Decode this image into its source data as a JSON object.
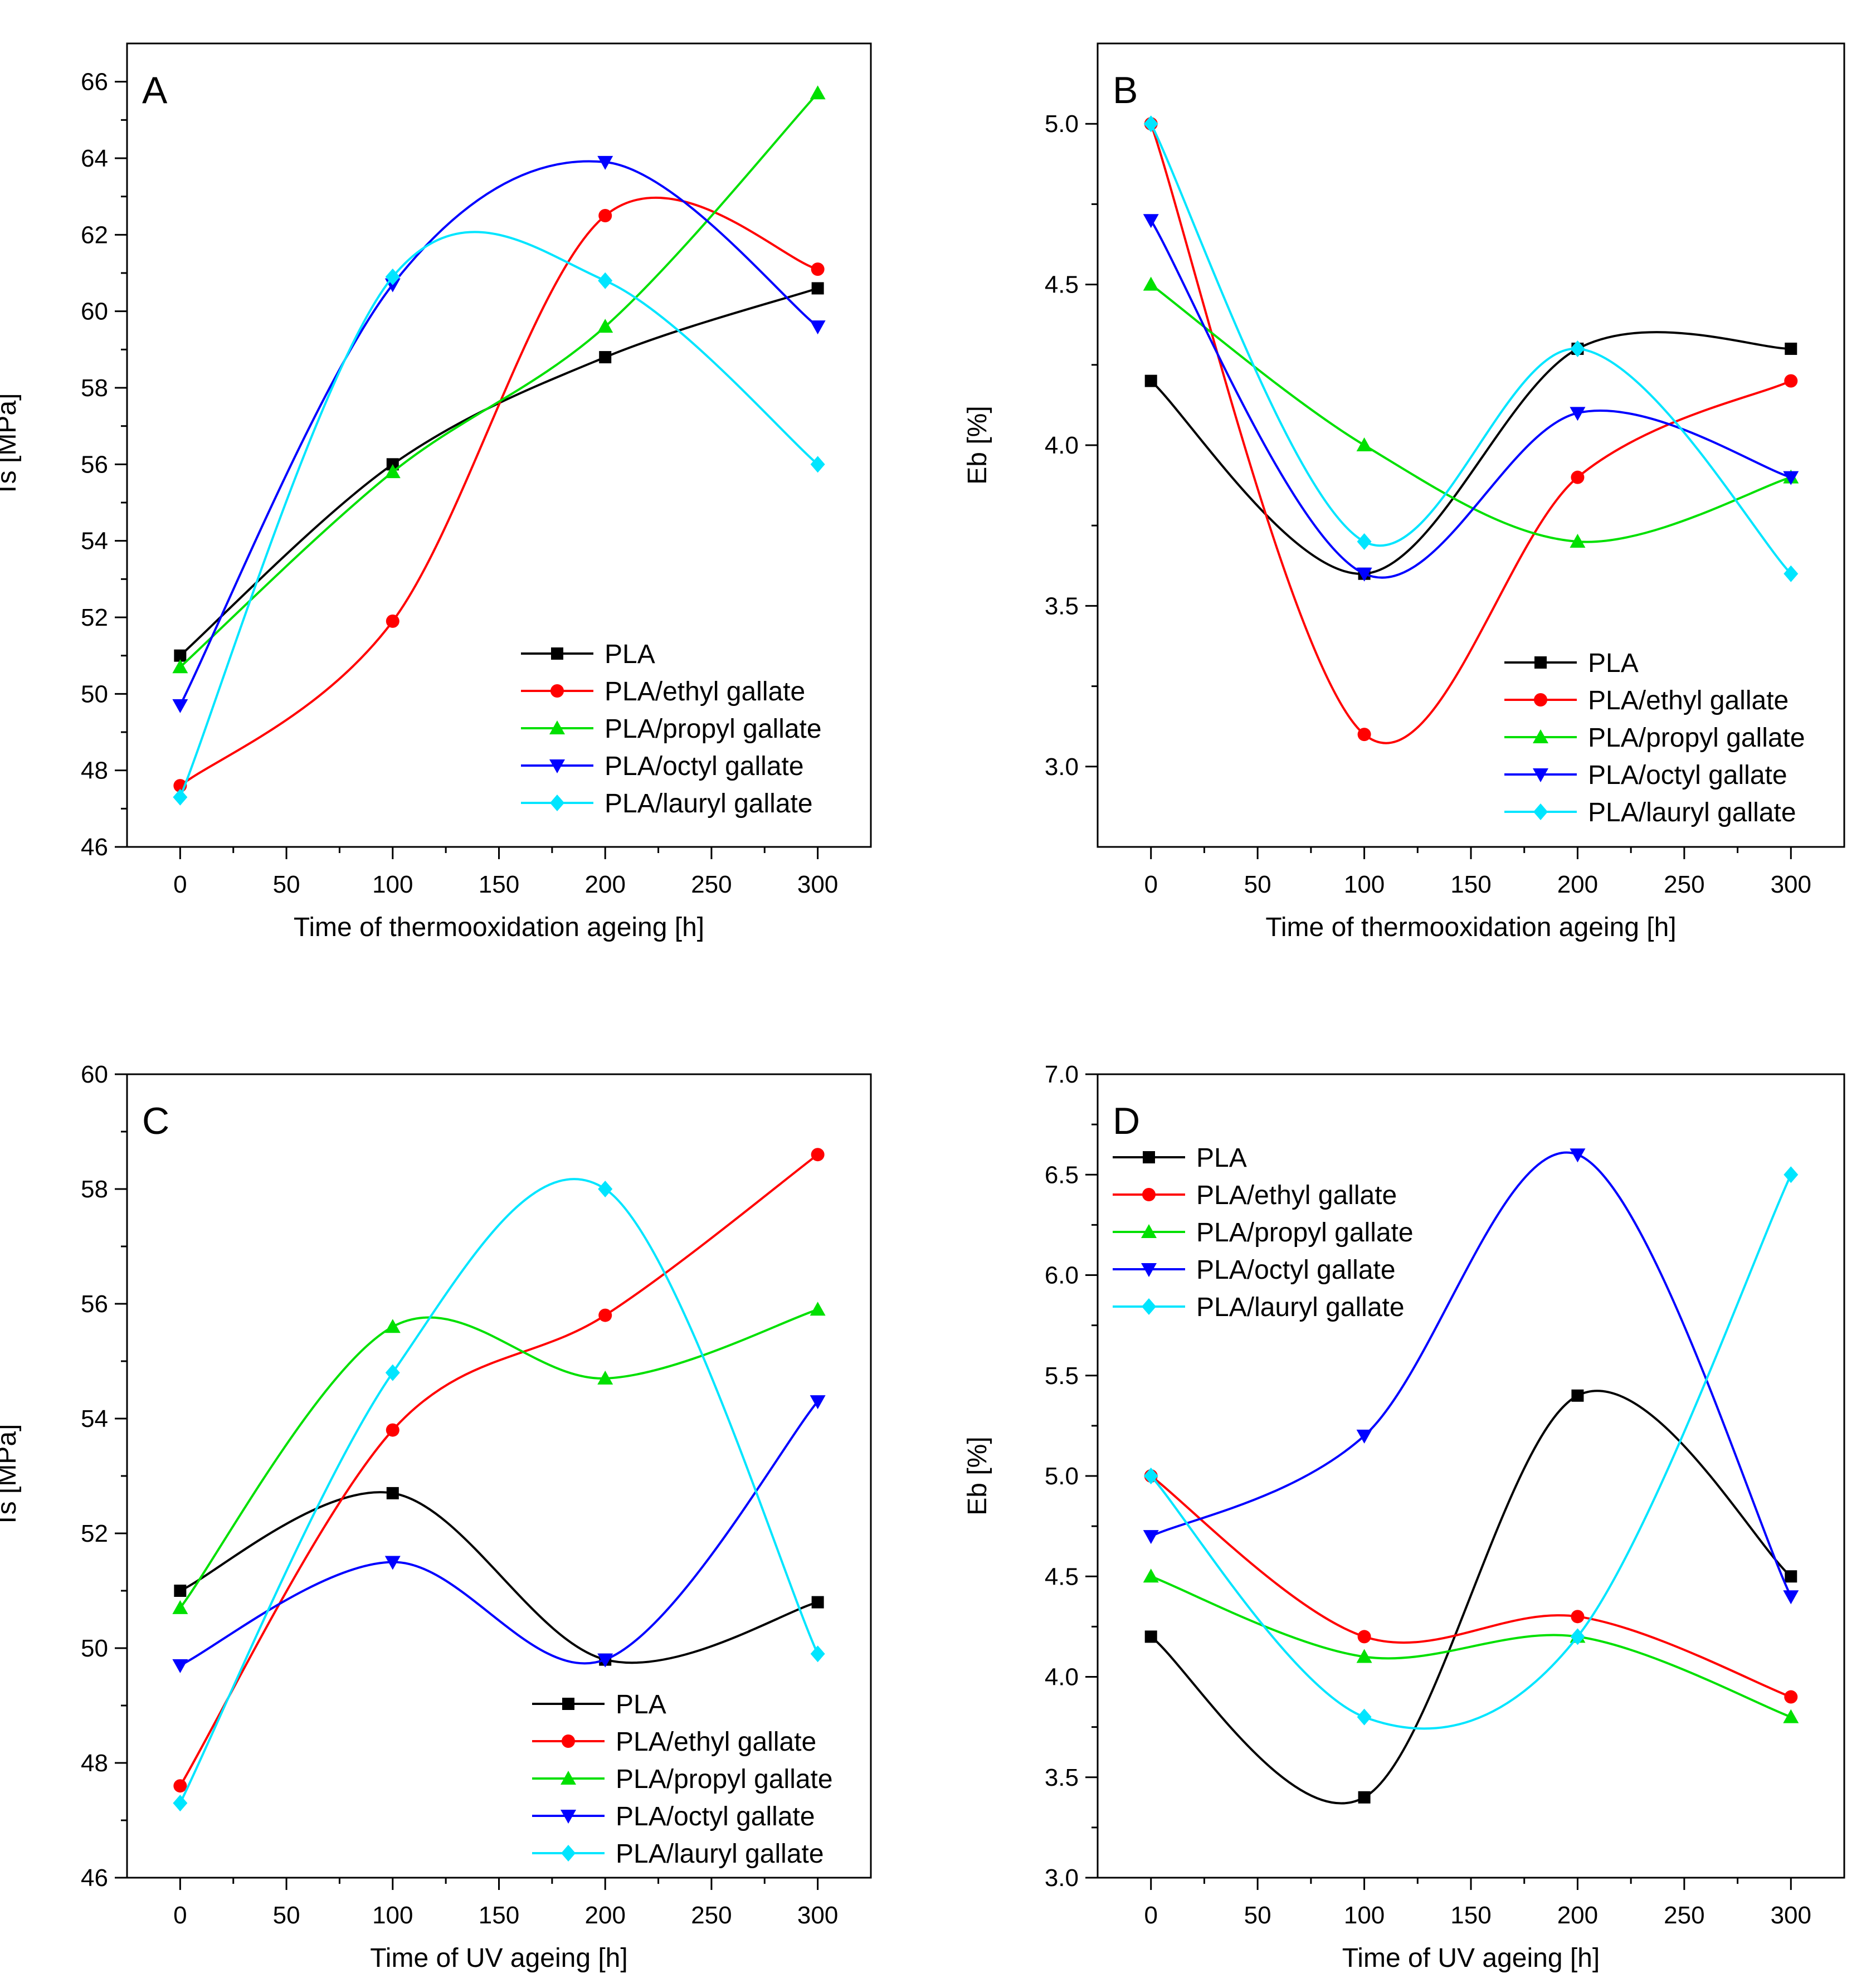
{
  "chart_data": [
    {
      "type": "line",
      "panel": "A",
      "xlabel": "Time of thermooxidation ageing [h]",
      "ylabel": "Ts [MPa]",
      "xlim": [
        -25,
        325
      ],
      "ylim": [
        46,
        67
      ],
      "xticks": [
        0,
        50,
        100,
        150,
        200,
        250,
        300
      ],
      "yticks": [
        46,
        48,
        50,
        52,
        54,
        56,
        58,
        60,
        62,
        64,
        66
      ],
      "legend_position": "bottom-right",
      "x": [
        0,
        100,
        200,
        300
      ],
      "series": [
        {
          "name": "PLA",
          "color": "#000000",
          "marker": "square",
          "values": [
            51.0,
            56.0,
            58.8,
            60.6
          ]
        },
        {
          "name": "PLA/ethyl gallate",
          "color": "#ff0000",
          "marker": "circle",
          "values": [
            47.6,
            51.9,
            62.5,
            61.1
          ]
        },
        {
          "name": "PLA/propyl gallate",
          "color": "#00e000",
          "marker": "triangle-up",
          "values": [
            50.7,
            55.8,
            59.6,
            65.7
          ]
        },
        {
          "name": "PLA/octyl gallate",
          "color": "#0000ff",
          "marker": "triangle-down",
          "values": [
            49.7,
            60.7,
            63.9,
            59.6
          ]
        },
        {
          "name": "PLA/lauryl gallate",
          "color": "#00e5ff",
          "marker": "diamond",
          "values": [
            47.3,
            60.9,
            60.8,
            56.0
          ]
        }
      ]
    },
    {
      "type": "line",
      "panel": "B",
      "xlabel": "Time of thermooxidation ageing [h]",
      "ylabel": "Eb [%]",
      "xlim": [
        -25,
        325
      ],
      "ylim": [
        2.75,
        5.25
      ],
      "xticks": [
        0,
        50,
        100,
        150,
        200,
        250,
        300
      ],
      "yticks": [
        "3.0",
        "3.5",
        "4.0",
        "4.5",
        "5.0"
      ],
      "legend_position": "bottom-right",
      "x": [
        0,
        100,
        200,
        300
      ],
      "series": [
        {
          "name": "PLA",
          "color": "#000000",
          "marker": "square",
          "values": [
            4.2,
            3.6,
            4.3,
            4.3
          ]
        },
        {
          "name": "PLA/ethyl gallate",
          "color": "#ff0000",
          "marker": "circle",
          "values": [
            5.0,
            3.1,
            3.9,
            4.2
          ]
        },
        {
          "name": "PLA/propyl gallate",
          "color": "#00e000",
          "marker": "triangle-up",
          "values": [
            4.5,
            4.0,
            3.7,
            3.9
          ]
        },
        {
          "name": "PLA/octyl gallate",
          "color": "#0000ff",
          "marker": "triangle-down",
          "values": [
            4.7,
            3.6,
            4.1,
            3.9
          ]
        },
        {
          "name": "PLA/lauryl gallate",
          "color": "#00e5ff",
          "marker": "diamond",
          "values": [
            5.0,
            3.7,
            4.3,
            3.6
          ]
        }
      ]
    },
    {
      "type": "line",
      "panel": "C",
      "xlabel": "Time of UV ageing [h]",
      "ylabel": "Ts [MPa]",
      "xlim": [
        -25,
        325
      ],
      "ylim": [
        46,
        60
      ],
      "xticks": [
        0,
        50,
        100,
        150,
        200,
        250,
        300
      ],
      "yticks": [
        46,
        48,
        50,
        52,
        54,
        56,
        58,
        60
      ],
      "legend_position": "bottom-right",
      "x": [
        0,
        100,
        200,
        300
      ],
      "series": [
        {
          "name": "PLA",
          "color": "#000000",
          "marker": "square",
          "values": [
            51.0,
            52.7,
            49.8,
            50.8
          ]
        },
        {
          "name": "PLA/ethyl gallate",
          "color": "#ff0000",
          "marker": "circle",
          "values": [
            47.6,
            53.8,
            55.8,
            58.6
          ]
        },
        {
          "name": "PLA/propyl gallate",
          "color": "#00e000",
          "marker": "triangle-up",
          "values": [
            50.7,
            55.6,
            54.7,
            55.9
          ]
        },
        {
          "name": "PLA/octyl gallate",
          "color": "#0000ff",
          "marker": "triangle-down",
          "values": [
            49.7,
            51.5,
            49.8,
            54.3
          ]
        },
        {
          "name": "PLA/lauryl gallate",
          "color": "#00e5ff",
          "marker": "diamond",
          "values": [
            47.3,
            54.8,
            58.0,
            49.9
          ]
        }
      ]
    },
    {
      "type": "line",
      "panel": "D",
      "xlabel": "Time of UV ageing [h]",
      "ylabel": "Eb [%]",
      "xlim": [
        -25,
        325
      ],
      "ylim": [
        3.0,
        7.0
      ],
      "xticks": [
        0,
        50,
        100,
        150,
        200,
        250,
        300
      ],
      "yticks": [
        "3.0",
        "3.5",
        "4.0",
        "4.5",
        "5.0",
        "5.5",
        "6.0",
        "6.5",
        "7.0"
      ],
      "legend_position": "top-left",
      "x": [
        0,
        100,
        200,
        300
      ],
      "series": [
        {
          "name": "PLA",
          "color": "#000000",
          "marker": "square",
          "values": [
            4.2,
            3.4,
            5.4,
            4.5
          ]
        },
        {
          "name": "PLA/ethyl gallate",
          "color": "#ff0000",
          "marker": "circle",
          "values": [
            5.0,
            4.2,
            4.3,
            3.9
          ]
        },
        {
          "name": "PLA/propyl gallate",
          "color": "#00e000",
          "marker": "triangle-up",
          "values": [
            4.5,
            4.1,
            4.2,
            3.8
          ]
        },
        {
          "name": "PLA/octyl gallate",
          "color": "#0000ff",
          "marker": "triangle-down",
          "values": [
            4.7,
            5.2,
            6.6,
            4.4
          ]
        },
        {
          "name": "PLA/lauryl gallate",
          "color": "#00e5ff",
          "marker": "diamond",
          "values": [
            5.0,
            3.8,
            4.2,
            6.5
          ]
        }
      ]
    }
  ]
}
